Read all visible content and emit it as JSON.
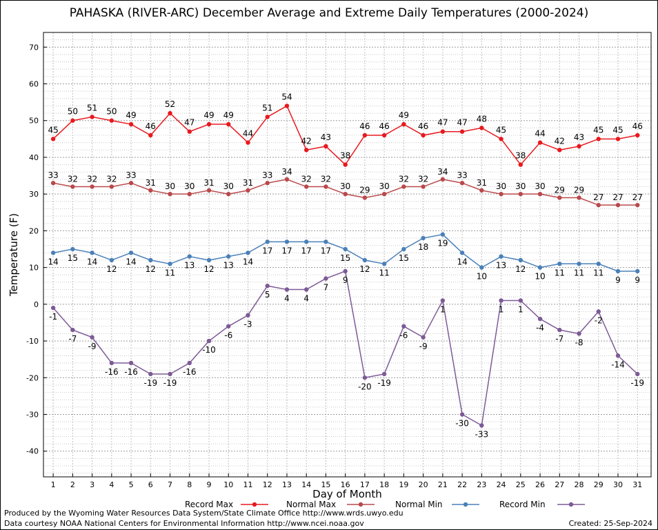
{
  "title": "PAHASKA (RIVER-ARC) December Average and Extreme Daily Temperatures (2000-2024)",
  "footer": {
    "produced_by": "Produced by the Wyoming Water Resources Data System/State Climate Office http://www.wrds.uwyo.edu",
    "courtesy": "Data courtesy NOAA National Centers for Environmental Information http://www.ncei.noaa.gov",
    "created": "Created:  25-Sep-2024"
  },
  "chart_data": {
    "type": "line",
    "title": "PAHASKA (RIVER-ARC) December Average and Extreme Daily Temperatures (2000-2024)",
    "xlabel": "Day of Month",
    "ylabel": "Temperature (F)",
    "x": [
      1,
      2,
      3,
      4,
      5,
      6,
      7,
      8,
      9,
      10,
      11,
      12,
      13,
      14,
      15,
      16,
      17,
      18,
      19,
      20,
      21,
      22,
      23,
      24,
      25,
      26,
      27,
      28,
      29,
      30,
      31
    ],
    "xlim": [
      0.5,
      31.7
    ],
    "ylim": [
      -47,
      74
    ],
    "yticks": [
      -40,
      -30,
      -20,
      -10,
      0,
      10,
      20,
      30,
      40,
      50,
      60,
      70
    ],
    "grid": true,
    "legend_position": "bottom",
    "series": [
      {
        "name": "Record Max",
        "color": "#e8191e",
        "values": [
          45,
          50,
          51,
          50,
          49,
          46,
          52,
          47,
          49,
          49,
          44,
          51,
          54,
          42,
          43,
          38,
          46,
          46,
          49,
          46,
          47,
          47,
          48,
          45,
          38,
          44,
          42,
          43,
          45,
          45,
          46
        ]
      },
      {
        "name": "Normal Max",
        "color": "#b9494b",
        "values": [
          33,
          32,
          32,
          32,
          33,
          31,
          30,
          30,
          31,
          30,
          31,
          33,
          34,
          32,
          32,
          30,
          29,
          30,
          32,
          32,
          34,
          33,
          31,
          30,
          30,
          30,
          29,
          29,
          27,
          27,
          27
        ]
      },
      {
        "name": "Normal Min",
        "color": "#4a80b8",
        "values": [
          14,
          15,
          14,
          12,
          14,
          12,
          11,
          13,
          12,
          13,
          14,
          17,
          17,
          17,
          17,
          15,
          12,
          11,
          15,
          18,
          19,
          14,
          10,
          13,
          12,
          10,
          11,
          11,
          11,
          9,
          9
        ]
      },
      {
        "name": "Record Min",
        "color": "#7d5a96",
        "values": [
          -1,
          -7,
          -9,
          -16,
          -16,
          -19,
          -19,
          -16,
          -10,
          -6,
          -3,
          5,
          4,
          4,
          7,
          9,
          -20,
          -19,
          -6,
          -9,
          1,
          -30,
          -33,
          1,
          1,
          -4,
          -7,
          -8,
          -2,
          -14,
          -19
        ]
      }
    ]
  }
}
